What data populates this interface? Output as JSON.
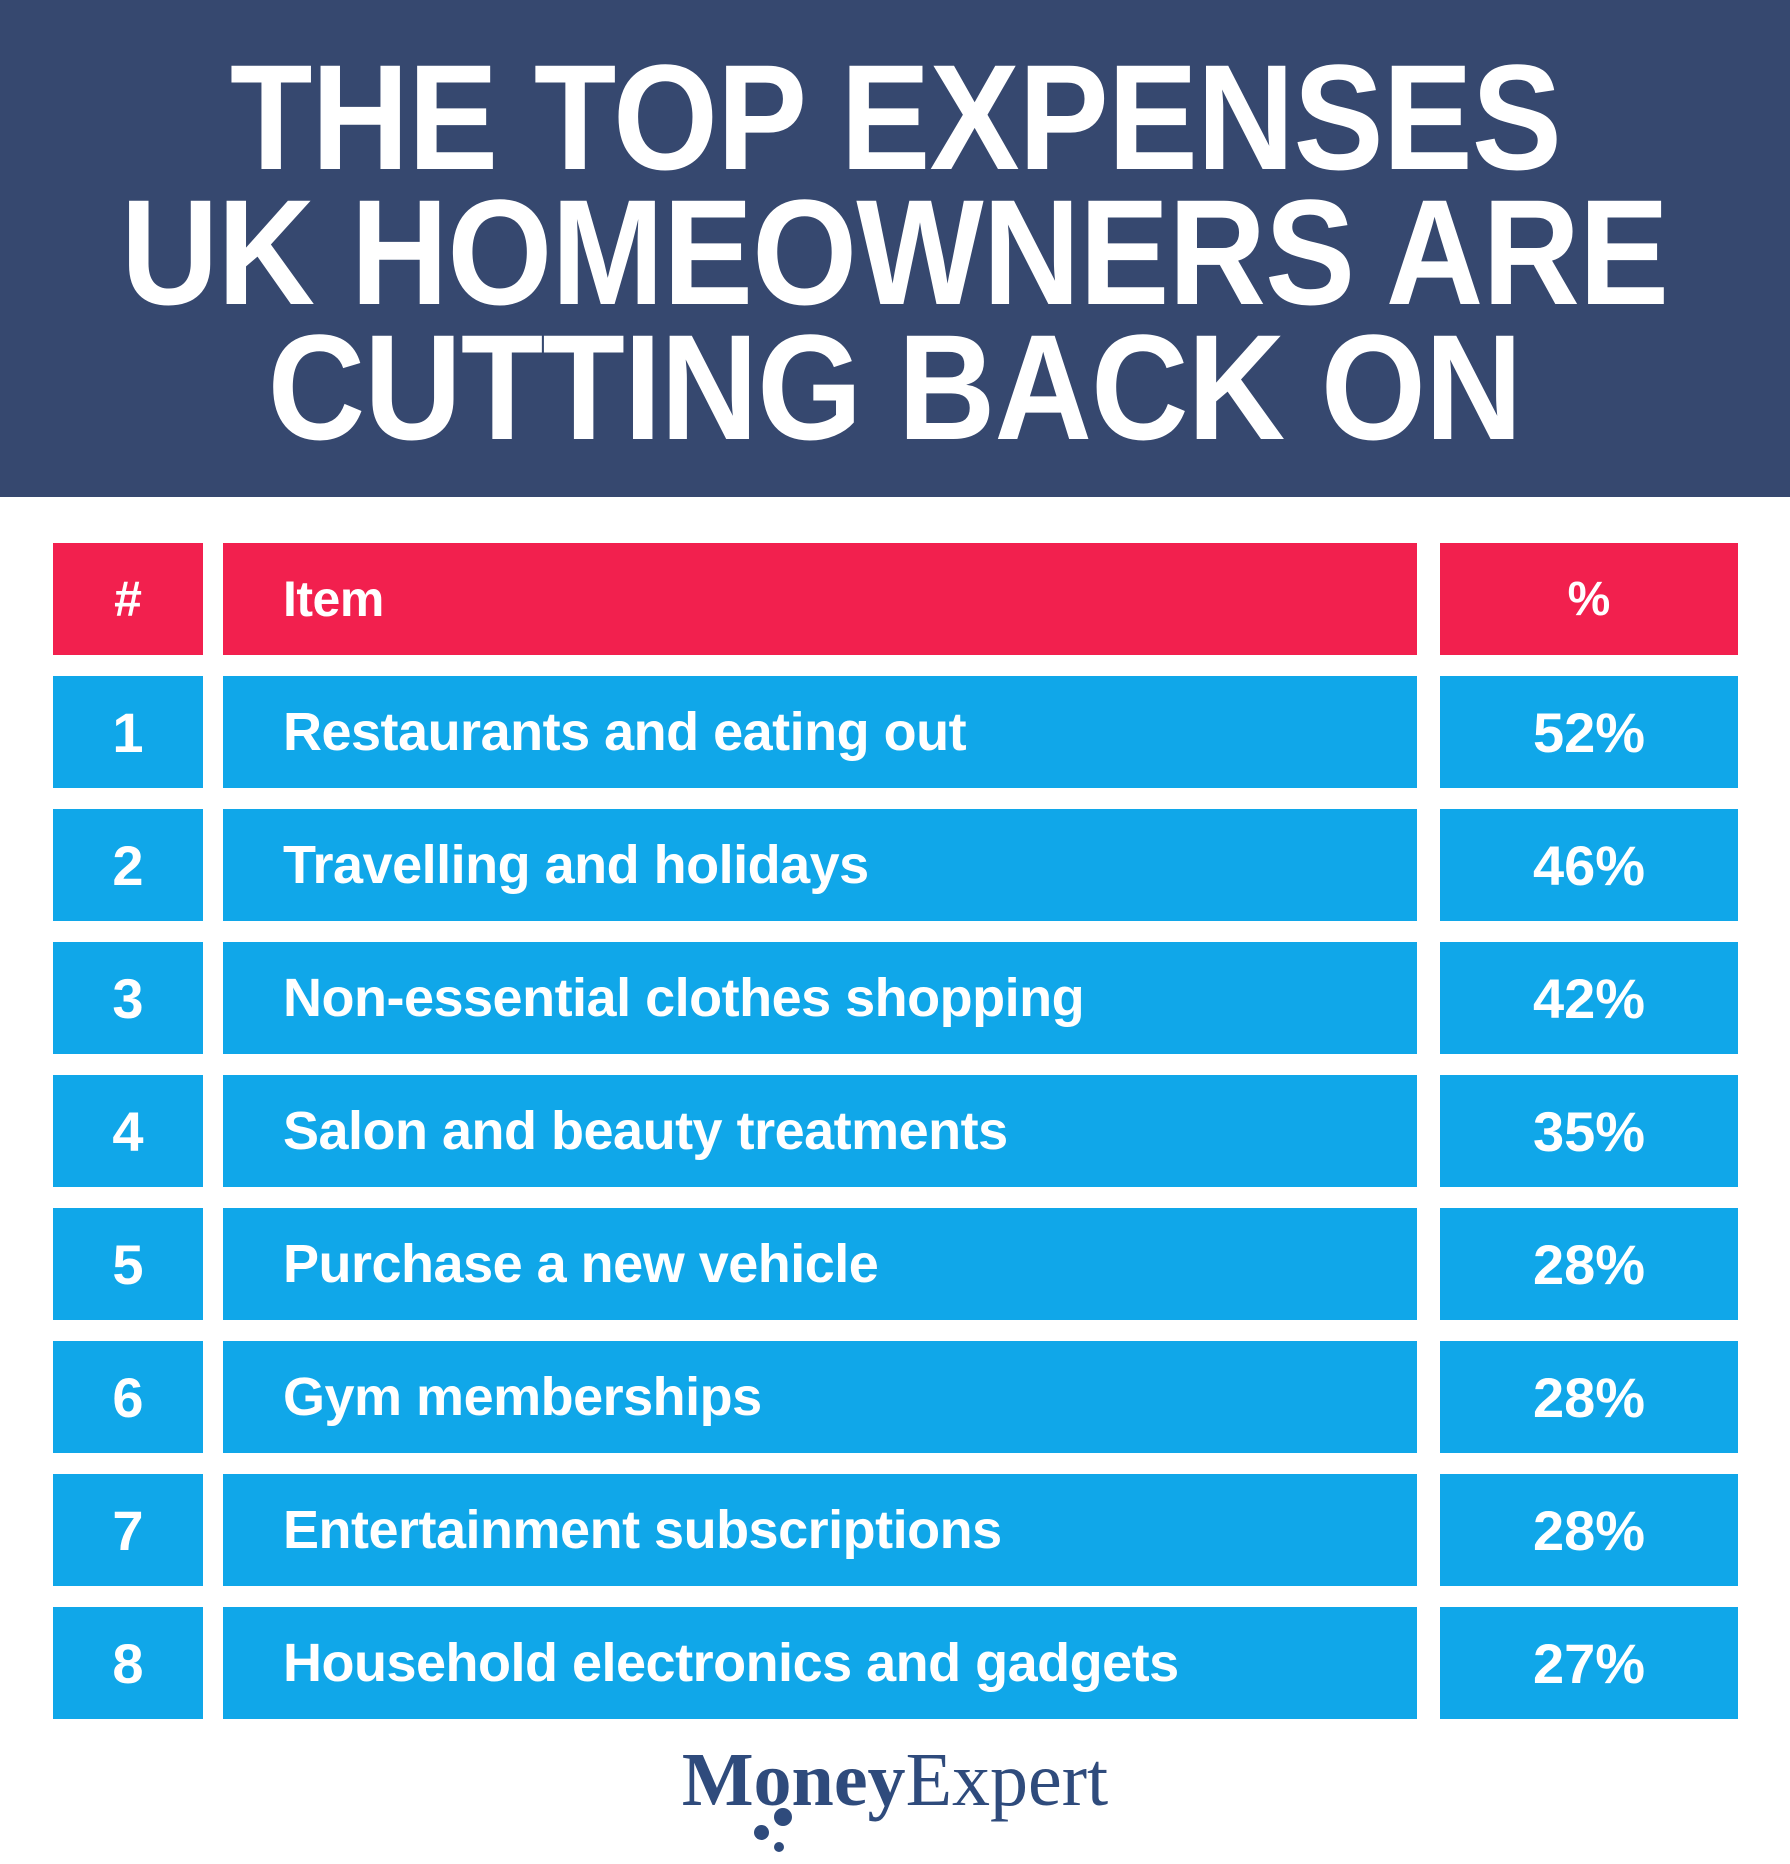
{
  "title": {
    "line1": "THE TOP EXPENSES",
    "line2": "UK HOMEOWNERS ARE",
    "line3": "CUTTING BACK ON"
  },
  "table": {
    "headers": {
      "rank": "#",
      "item": "Item",
      "percent": "%"
    },
    "rows": [
      {
        "rank": "1",
        "item": "Restaurants and eating out",
        "percent": "52%"
      },
      {
        "rank": "2",
        "item": "Travelling and holidays",
        "percent": "46%"
      },
      {
        "rank": "3",
        "item": "Non-essential clothes shopping",
        "percent": "42%"
      },
      {
        "rank": "4",
        "item": "Salon and beauty treatments",
        "percent": "35%"
      },
      {
        "rank": "5",
        "item": "Purchase a new vehicle",
        "percent": "28%"
      },
      {
        "rank": "6",
        "item": "Gym memberships",
        "percent": "28%"
      },
      {
        "rank": "7",
        "item": "Entertainment subscriptions",
        "percent": "28%"
      },
      {
        "rank": "8",
        "item": "Household electronics and gadgets",
        "percent": "27%"
      }
    ]
  },
  "footer": {
    "logo_bold": "Money",
    "logo_light": "Expert"
  },
  "colors": {
    "banner_background": "#36486F",
    "header_red": "#F2204E",
    "row_blue": "#10A7E9",
    "text_white": "#FFFFFF",
    "logo_navy": "#2F4B7C"
  },
  "chart_data": {
    "type": "table",
    "title": "THE TOP EXPENSES UK HOMEOWNERS ARE CUTTING BACK ON",
    "columns": [
      "#",
      "Item",
      "%"
    ],
    "categories": [
      "Restaurants and eating out",
      "Travelling and holidays",
      "Non-essential clothes shopping",
      "Salon and beauty treatments",
      "Purchase a new vehicle",
      "Gym memberships",
      "Entertainment subscriptions",
      "Household electronics and gadgets"
    ],
    "values": [
      52,
      46,
      42,
      35,
      28,
      28,
      28,
      27
    ],
    "unit": "%",
    "source_brand": "MoneyExpert"
  }
}
